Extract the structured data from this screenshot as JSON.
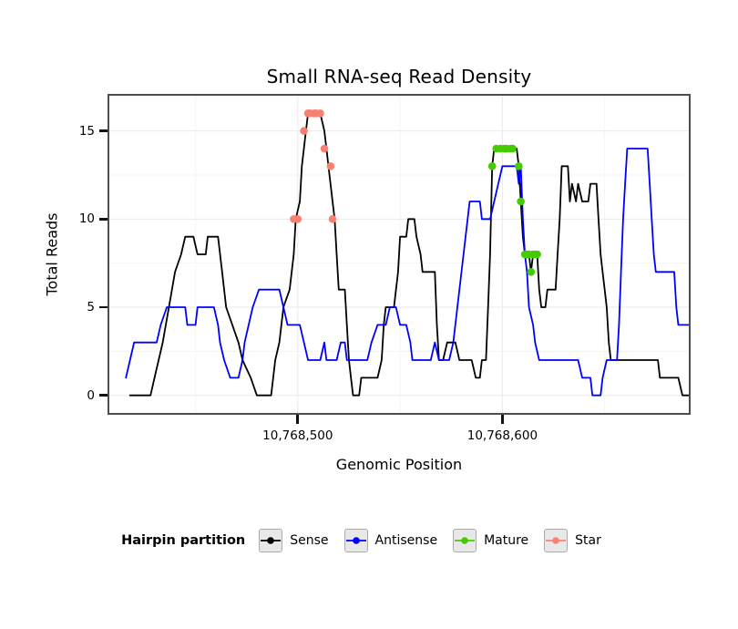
{
  "title": "Small RNA-seq Read Density",
  "axes": {
    "x_label": "Genomic Position",
    "y_label": "Total Reads"
  },
  "legend": {
    "title": "Hairpin partition",
    "items": [
      {
        "label": "Sense",
        "color": "#000000"
      },
      {
        "label": "Antisense",
        "color": "#0000FF"
      },
      {
        "label": "Mature",
        "color": "#44CC00"
      },
      {
        "label": "Star",
        "color": "#FA8072"
      }
    ]
  },
  "colors": {
    "panel_border": "#4d4d4d",
    "grid_major": "#eaeaea",
    "grid_minor": "#f5f5f5",
    "tick": "#111111"
  },
  "chart_data": {
    "type": "line",
    "title": "Small RNA-seq Read Density",
    "xlabel": "Genomic Position",
    "ylabel": "Total Reads",
    "x_range": [
      10768407,
      10768692
    ],
    "y_range": [
      -1.1,
      17.1
    ],
    "grid": "major+minor",
    "legend_position": "bottom",
    "x_ticks": [
      {
        "value": 10768500,
        "label": "10,768,500"
      },
      {
        "value": 10768600,
        "label": "10,768,600"
      }
    ],
    "y_ticks": [
      {
        "value": 0,
        "label": "0"
      },
      {
        "value": 5,
        "label": "5"
      },
      {
        "value": 10,
        "label": "10"
      },
      {
        "value": 15,
        "label": "15"
      }
    ],
    "x_minor_ticks": [
      10768450,
      10768550,
      10768650
    ],
    "y_minor_ticks": [
      2.5,
      7.5,
      12.5
    ],
    "series": [
      {
        "name": "Sense",
        "geom": "line",
        "color": "#000000",
        "points": [
          [
            10768418,
            0
          ],
          [
            10768428,
            0
          ],
          [
            10768430,
            1
          ],
          [
            10768432,
            2
          ],
          [
            10768434,
            3
          ],
          [
            10768437,
            5
          ],
          [
            10768440,
            7
          ],
          [
            10768443,
            8
          ],
          [
            10768445,
            9
          ],
          [
            10768449,
            9
          ],
          [
            10768451,
            8
          ],
          [
            10768455,
            8
          ],
          [
            10768456,
            9
          ],
          [
            10768461,
            9
          ],
          [
            10768463,
            7
          ],
          [
            10768465,
            5
          ],
          [
            10768468,
            4
          ],
          [
            10768471,
            3
          ],
          [
            10768473,
            2
          ],
          [
            10768477,
            1
          ],
          [
            10768480,
            0
          ],
          [
            10768487,
            0
          ],
          [
            10768489,
            2
          ],
          [
            10768491,
            3
          ],
          [
            10768493,
            5
          ],
          [
            10768496,
            6
          ],
          [
            10768498,
            8
          ],
          [
            10768499,
            10
          ],
          [
            10768501,
            11
          ],
          [
            10768502,
            13
          ],
          [
            10768504,
            15
          ],
          [
            10768505,
            16
          ],
          [
            10768511,
            16
          ],
          [
            10768513,
            15
          ],
          [
            10768514,
            14
          ],
          [
            10768515,
            13
          ],
          [
            10768517,
            11
          ],
          [
            10768518,
            10
          ],
          [
            10768519,
            8
          ],
          [
            10768520,
            6
          ],
          [
            10768523,
            6
          ],
          [
            10768524,
            4
          ],
          [
            10768525,
            2
          ],
          [
            10768526,
            1
          ],
          [
            10768527,
            0
          ],
          [
            10768530,
            0
          ],
          [
            10768531,
            1
          ],
          [
            10768539,
            1
          ],
          [
            10768541,
            2
          ],
          [
            10768542,
            4
          ],
          [
            10768543,
            5
          ],
          [
            10768547,
            5
          ],
          [
            10768549,
            7
          ],
          [
            10768550,
            9
          ],
          [
            10768553,
            9
          ],
          [
            10768554,
            10
          ],
          [
            10768557,
            10
          ],
          [
            10768558,
            9
          ],
          [
            10768560,
            8
          ],
          [
            10768561,
            7
          ],
          [
            10768567,
            7
          ],
          [
            10768568,
            4
          ],
          [
            10768569,
            2
          ],
          [
            10768571,
            2
          ],
          [
            10768573,
            3
          ],
          [
            10768577,
            3
          ],
          [
            10768579,
            2
          ],
          [
            10768585,
            2
          ],
          [
            10768587,
            1
          ],
          [
            10768589,
            1
          ],
          [
            10768590,
            2
          ],
          [
            10768592,
            2
          ],
          [
            10768593,
            5
          ],
          [
            10768594,
            8
          ],
          [
            10768595,
            13
          ],
          [
            10768596,
            14
          ],
          [
            10768607,
            14
          ],
          [
            10768608,
            13
          ],
          [
            10768609,
            11
          ],
          [
            10768610,
            9
          ],
          [
            10768611,
            8
          ],
          [
            10768613,
            8
          ],
          [
            10768614,
            7
          ],
          [
            10768615,
            8
          ],
          [
            10768617,
            8
          ],
          [
            10768618,
            6
          ],
          [
            10768619,
            5
          ],
          [
            10768621,
            5
          ],
          [
            10768622,
            6
          ],
          [
            10768626,
            6
          ],
          [
            10768627,
            8
          ],
          [
            10768628,
            10
          ],
          [
            10768629,
            13
          ],
          [
            10768632,
            13
          ],
          [
            10768633,
            11
          ],
          [
            10768634,
            12
          ],
          [
            10768636,
            11
          ],
          [
            10768637,
            12
          ],
          [
            10768639,
            11
          ],
          [
            10768642,
            11
          ],
          [
            10768643,
            12
          ],
          [
            10768646,
            12
          ],
          [
            10768647,
            10
          ],
          [
            10768648,
            8
          ],
          [
            10768649,
            7
          ],
          [
            10768651,
            5
          ],
          [
            10768652,
            3
          ],
          [
            10768653,
            2
          ],
          [
            10768676,
            2
          ],
          [
            10768677,
            1
          ],
          [
            10768686,
            1
          ],
          [
            10768688,
            0
          ],
          [
            10768691,
            0
          ]
        ]
      },
      {
        "name": "Antisense",
        "geom": "line",
        "color": "#0000FF",
        "points": [
          [
            10768416,
            1
          ],
          [
            10768418,
            2
          ],
          [
            10768420,
            3
          ],
          [
            10768431,
            3
          ],
          [
            10768433,
            4
          ],
          [
            10768436,
            5
          ],
          [
            10768445,
            5
          ],
          [
            10768446,
            4
          ],
          [
            10768450,
            4
          ],
          [
            10768451,
            5
          ],
          [
            10768459,
            5
          ],
          [
            10768461,
            4
          ],
          [
            10768462,
            3
          ],
          [
            10768464,
            2
          ],
          [
            10768467,
            1
          ],
          [
            10768471,
            1
          ],
          [
            10768473,
            2
          ],
          [
            10768474,
            3
          ],
          [
            10768476,
            4
          ],
          [
            10768478,
            5
          ],
          [
            10768481,
            6
          ],
          [
            10768491,
            6
          ],
          [
            10768493,
            5
          ],
          [
            10768495,
            4
          ],
          [
            10768501,
            4
          ],
          [
            10768503,
            3
          ],
          [
            10768505,
            2
          ],
          [
            10768511,
            2
          ],
          [
            10768513,
            3
          ],
          [
            10768514,
            2
          ],
          [
            10768519,
            2
          ],
          [
            10768521,
            3
          ],
          [
            10768523,
            3
          ],
          [
            10768524,
            2
          ],
          [
            10768534,
            2
          ],
          [
            10768536,
            3
          ],
          [
            10768539,
            4
          ],
          [
            10768543,
            4
          ],
          [
            10768545,
            5
          ],
          [
            10768548,
            5
          ],
          [
            10768550,
            4
          ],
          [
            10768553,
            4
          ],
          [
            10768555,
            3
          ],
          [
            10768556,
            2
          ],
          [
            10768565,
            2
          ],
          [
            10768567,
            3
          ],
          [
            10768569,
            2
          ],
          [
            10768574,
            2
          ],
          [
            10768576,
            3
          ],
          [
            10768578,
            5
          ],
          [
            10768580,
            7
          ],
          [
            10768582,
            9
          ],
          [
            10768584,
            11
          ],
          [
            10768589,
            11
          ],
          [
            10768590,
            10
          ],
          [
            10768594,
            10
          ],
          [
            10768596,
            11
          ],
          [
            10768598,
            12
          ],
          [
            10768600,
            13
          ],
          [
            10768607,
            13
          ],
          [
            10768608,
            12
          ],
          [
            10768609,
            13
          ],
          [
            10768610,
            10
          ],
          [
            10768611,
            8
          ],
          [
            10768612,
            7
          ],
          [
            10768613,
            5
          ],
          [
            10768615,
            4
          ],
          [
            10768616,
            3
          ],
          [
            10768618,
            2
          ],
          [
            10768637,
            2
          ],
          [
            10768639,
            1
          ],
          [
            10768643,
            1
          ],
          [
            10768644,
            0
          ],
          [
            10768648,
            0
          ],
          [
            10768649,
            1
          ],
          [
            10768651,
            2
          ],
          [
            10768656,
            2
          ],
          [
            10768657,
            4
          ],
          [
            10768658,
            7
          ],
          [
            10768659,
            10
          ],
          [
            10768660,
            12
          ],
          [
            10768661,
            14
          ],
          [
            10768671,
            14
          ],
          [
            10768672,
            12
          ],
          [
            10768673,
            10
          ],
          [
            10768674,
            8
          ],
          [
            10768675,
            7
          ],
          [
            10768684,
            7
          ],
          [
            10768685,
            5
          ],
          [
            10768686,
            4
          ],
          [
            10768692,
            4
          ]
        ]
      },
      {
        "name": "Mature",
        "geom": "points",
        "color": "#44CC00",
        "points": [
          [
            10768595,
            13
          ],
          [
            10768597,
            14
          ],
          [
            10768599,
            14
          ],
          [
            10768601,
            14
          ],
          [
            10768602,
            14
          ],
          [
            10768604,
            14
          ],
          [
            10768605,
            14
          ],
          [
            10768608,
            13
          ],
          [
            10768609,
            11
          ],
          [
            10768611,
            8
          ],
          [
            10768612,
            8
          ],
          [
            10768613,
            8
          ],
          [
            10768614,
            7
          ],
          [
            10768615,
            8
          ],
          [
            10768616,
            8
          ],
          [
            10768617,
            8
          ]
        ]
      },
      {
        "name": "Star",
        "geom": "points",
        "color": "#FA8072",
        "points": [
          [
            10768498,
            10
          ],
          [
            10768500,
            10
          ],
          [
            10768503,
            15
          ],
          [
            10768505,
            16
          ],
          [
            10768506,
            16
          ],
          [
            10768508,
            16
          ],
          [
            10768509,
            16
          ],
          [
            10768511,
            16
          ],
          [
            10768513,
            14
          ],
          [
            10768516,
            13
          ],
          [
            10768517,
            10
          ]
        ]
      }
    ]
  }
}
